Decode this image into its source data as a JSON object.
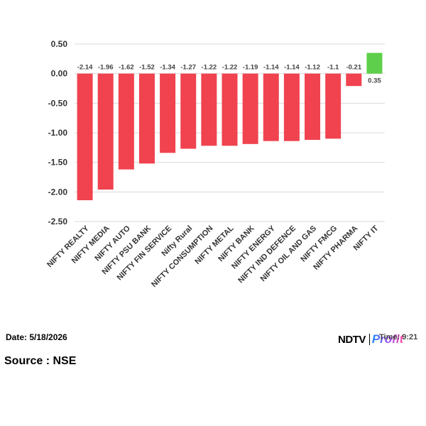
{
  "chart_data": {
    "type": "bar",
    "categories": [
      "NIFTY REALTY",
      "NIFTY MEDIA",
      "NIFTY AUTO",
      "NIFTY PSU BANK",
      "NIFTY FIN SERVICE",
      "Nifty Rural",
      "NIFTY CONSUMPTION",
      "NIFTY METAL",
      "NIFTY BANK",
      "NIFTY ENERGY",
      "NIFTY IND DEFENCE",
      "NIFTY OIL AND GAS",
      "NIFTY FMCG",
      "NIFTY PHARMA",
      "NIFTY IT"
    ],
    "values": [
      -2.14,
      -1.96,
      -1.62,
      -1.52,
      -1.34,
      -1.27,
      -1.22,
      -1.22,
      -1.19,
      -1.14,
      -1.14,
      -1.12,
      -1.1,
      -0.21,
      0.35
    ],
    "data_labels": [
      "-2.14",
      "-1.96",
      "-1.62",
      "-1.52",
      "-1.34",
      "-1.27",
      "-1.22",
      "-1.22",
      "-1.19",
      "-1.14",
      "-1.14",
      "-1.12",
      "-1.1",
      "-0.21",
      "0.35"
    ],
    "ylim": [
      -2.5,
      0.5
    ],
    "yticks": [
      "0.50",
      "0.00",
      "-0.50",
      "-1.00",
      "-1.50",
      "-2.00",
      "-2.50"
    ],
    "ytick_values": [
      0.5,
      0,
      -0.5,
      -1.0,
      -1.5,
      -2.0,
      -2.5
    ],
    "grid": true,
    "negative_color": "#f0434f",
    "positive_color": "#5ecf4a"
  },
  "footer": {
    "date": "Date: 5/18/2026",
    "source": "Source : NSE",
    "logo_brand": "NDTV",
    "logo_product": "Profit",
    "time": "Time: 9:21"
  }
}
